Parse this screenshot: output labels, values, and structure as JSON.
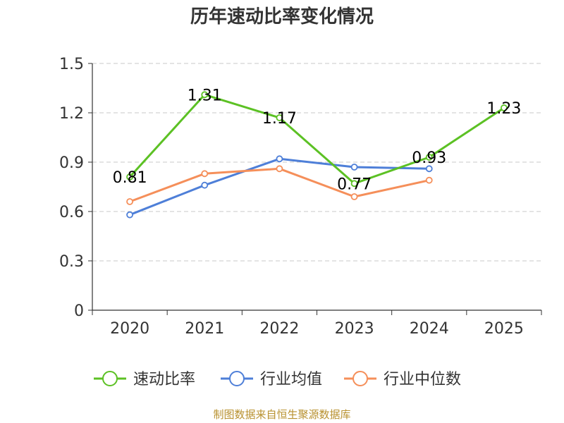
{
  "chart_data": {
    "type": "line",
    "title": "历年速动比率变化情况",
    "categories": [
      "2020",
      "2021",
      "2022",
      "2023",
      "2024",
      "2025"
    ],
    "ylim": [
      0,
      1.5
    ],
    "yticks": [
      "0",
      "0.3",
      "0.6",
      "0.9",
      "1.2",
      "1.5"
    ],
    "grid": true,
    "legend_position": "bottom",
    "series": [
      {
        "name": "速动比率",
        "color": "#5cc124",
        "values": [
          0.81,
          1.31,
          1.17,
          0.77,
          0.93,
          1.23
        ],
        "labels": [
          "0.81",
          "1.31",
          "1.17",
          "0.77",
          "0.93",
          "1.23"
        ]
      },
      {
        "name": "行业均值",
        "color": "#4e7fd8",
        "values": [
          0.58,
          0.76,
          0.92,
          0.87,
          0.86,
          null
        ]
      },
      {
        "name": "行业中位数",
        "color": "#f58f5a",
        "values": [
          0.66,
          0.83,
          0.86,
          0.69,
          0.79,
          null
        ]
      }
    ]
  },
  "footer": {
    "source": "制图数据来自恒生聚源数据库"
  }
}
